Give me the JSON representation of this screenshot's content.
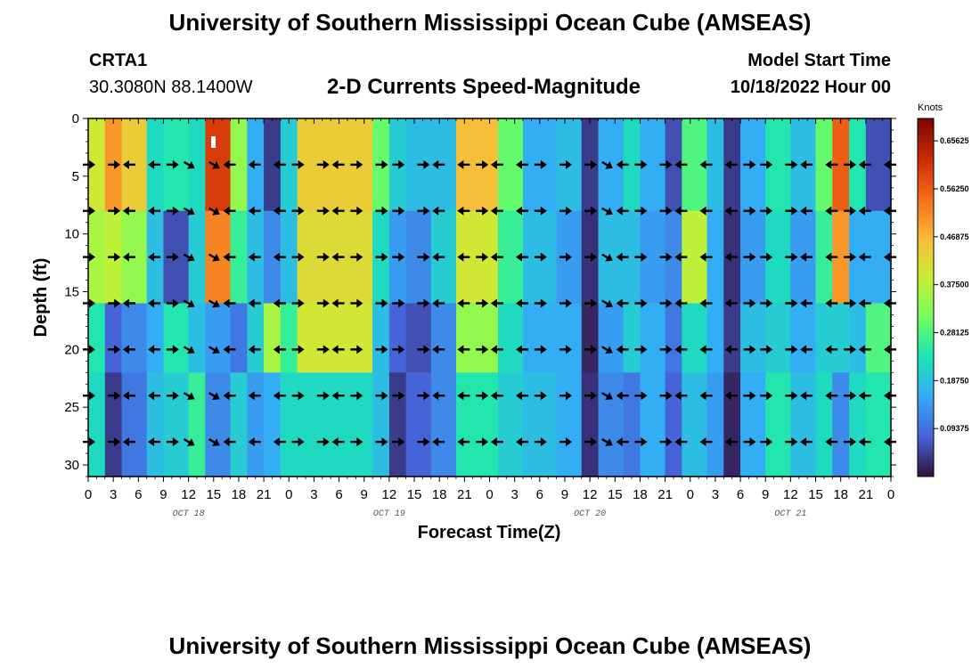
{
  "header": {
    "title": "University of Southern Mississippi Ocean Cube (AMSEAS)",
    "station": "CRTA1",
    "coords": "30.3080N  88.1400W",
    "subtitle": "2-D Currents Speed-Magnitude",
    "model_start_label": "Model Start Time",
    "model_start_value": "10/18/2022 Hour 00"
  },
  "footer": {
    "title": "University of Southern Mississippi Ocean Cube (AMSEAS)"
  },
  "chart_data": {
    "type": "heatmap",
    "title": "2-D Currents Speed-Magnitude",
    "xlabel": "Forecast Time(Z)",
    "ylabel": "Depth (ft)",
    "x_ticks": [
      "0",
      "3",
      "6",
      "9",
      "12",
      "15",
      "18",
      "21",
      "0",
      "3",
      "6",
      "9",
      "12",
      "15",
      "18",
      "21",
      "0",
      "3",
      "6",
      "9",
      "12",
      "15",
      "18",
      "21",
      "0",
      "3",
      "6",
      "9",
      "12",
      "15",
      "18",
      "21",
      "0"
    ],
    "x_range_hours": [
      0,
      96
    ],
    "date_labels": [
      {
        "label": "OCT 18",
        "hour": 12
      },
      {
        "label": "OCT 19",
        "hour": 36
      },
      {
        "label": "OCT 20",
        "hour": 60
      },
      {
        "label": "OCT 21",
        "hour": 84
      }
    ],
    "y_ticks": [
      "0",
      "5",
      "10",
      "15",
      "20",
      "25",
      "30"
    ],
    "ylim": [
      0,
      31
    ],
    "colorbar": {
      "units": "Knots",
      "labels": [
        "0.65625",
        "0.56250",
        "0.46875",
        "0.37500",
        "0.28125",
        "0.18750",
        "0.09375"
      ],
      "range": [
        0,
        0.7
      ],
      "colors": [
        "#30123b",
        "#4662d7",
        "#35abf8",
        "#1ae4b6",
        "#72fe5e",
        "#c8ef34",
        "#faba39",
        "#f66b19",
        "#ca2a04",
        "#7a0403"
      ]
    },
    "arrow_depths_ft": [
      4,
      8,
      12,
      16,
      20,
      24,
      28
    ],
    "arrow_hours": [
      0,
      3,
      5,
      8,
      10,
      12,
      15,
      17,
      20,
      23,
      25,
      28,
      30,
      32,
      35,
      37,
      40,
      42,
      45,
      47,
      49,
      52,
      54,
      57,
      60,
      62,
      64,
      66,
      69,
      71,
      74,
      77,
      79,
      81,
      84,
      86,
      89,
      91,
      93,
      96
    ],
    "speed_field": {
      "note": "Approximate speed (knots) per column and depth group",
      "depth_groups_ft": [
        [
          0,
          8
        ],
        [
          8,
          16
        ],
        [
          16,
          22
        ],
        [
          22,
          31
        ]
      ],
      "columns": [
        {
          "hour_start": 0,
          "hour_end": 2,
          "speeds": [
            0.4,
            0.36,
            0.24,
            0.22
          ]
        },
        {
          "hour_start": 2,
          "hour_end": 4,
          "speeds": [
            0.5,
            0.38,
            0.08,
            0.04
          ]
        },
        {
          "hour_start": 4,
          "hour_end": 7,
          "speeds": [
            0.44,
            0.34,
            0.12,
            0.1
          ]
        },
        {
          "hour_start": 7,
          "hour_end": 9,
          "speeds": [
            0.22,
            0.18,
            0.16,
            0.18
          ]
        },
        {
          "hour_start": 9,
          "hour_end": 12,
          "speeds": [
            0.24,
            0.06,
            0.24,
            0.2
          ]
        },
        {
          "hour_start": 12,
          "hour_end": 14,
          "speeds": [
            0.22,
            0.2,
            0.18,
            0.26
          ]
        },
        {
          "hour_start": 14,
          "hour_end": 17,
          "speeds": [
            0.6,
            0.52,
            0.14,
            0.12
          ]
        },
        {
          "hour_start": 17,
          "hour_end": 19,
          "speeds": [
            0.34,
            0.26,
            0.1,
            0.2
          ]
        },
        {
          "hour_start": 19,
          "hour_end": 21,
          "speeds": [
            0.16,
            0.18,
            0.2,
            0.14
          ]
        },
        {
          "hour_start": 21,
          "hour_end": 23,
          "speeds": [
            0.04,
            0.12,
            0.36,
            0.16
          ]
        },
        {
          "hour_start": 23,
          "hour_end": 25,
          "speeds": [
            0.2,
            0.18,
            0.26,
            0.22
          ]
        },
        {
          "hour_start": 25,
          "hour_end": 34,
          "speeds": [
            0.44,
            0.42,
            0.4,
            0.22
          ]
        },
        {
          "hour_start": 34,
          "hour_end": 36,
          "speeds": [
            0.3,
            0.22,
            0.18,
            0.18
          ]
        },
        {
          "hour_start": 36,
          "hour_end": 38,
          "speeds": [
            0.2,
            0.14,
            0.08,
            0.04
          ]
        },
        {
          "hour_start": 38,
          "hour_end": 41,
          "speeds": [
            0.18,
            0.12,
            0.06,
            0.08
          ]
        },
        {
          "hour_start": 41,
          "hour_end": 44,
          "speeds": [
            0.18,
            0.2,
            0.12,
            0.12
          ]
        },
        {
          "hour_start": 44,
          "hour_end": 49,
          "speeds": [
            0.46,
            0.4,
            0.34,
            0.24
          ]
        },
        {
          "hour_start": 49,
          "hour_end": 52,
          "speeds": [
            0.3,
            0.26,
            0.22,
            0.2
          ]
        },
        {
          "hour_start": 52,
          "hour_end": 56,
          "speeds": [
            0.16,
            0.18,
            0.16,
            0.18
          ]
        },
        {
          "hour_start": 56,
          "hour_end": 59,
          "speeds": [
            0.18,
            0.14,
            0.16,
            0.16
          ]
        },
        {
          "hour_start": 59,
          "hour_end": 61,
          "speeds": [
            0.04,
            0.03,
            0.02,
            0.03
          ]
        },
        {
          "hour_start": 61,
          "hour_end": 64,
          "speeds": [
            0.16,
            0.18,
            0.14,
            0.12
          ]
        },
        {
          "hour_start": 64,
          "hour_end": 66,
          "speeds": [
            0.22,
            0.18,
            0.2,
            0.1
          ]
        },
        {
          "hour_start": 66,
          "hour_end": 69,
          "speeds": [
            0.16,
            0.14,
            0.16,
            0.16
          ]
        },
        {
          "hour_start": 69,
          "hour_end": 71,
          "speeds": [
            0.06,
            0.12,
            0.1,
            0.08
          ]
        },
        {
          "hour_start": 71,
          "hour_end": 74,
          "speeds": [
            0.28,
            0.38,
            0.22,
            0.18
          ]
        },
        {
          "hour_start": 74,
          "hour_end": 76,
          "speeds": [
            0.18,
            0.16,
            0.16,
            0.14
          ]
        },
        {
          "hour_start": 76,
          "hour_end": 78,
          "speeds": [
            0.04,
            0.03,
            0.04,
            0.02
          ]
        },
        {
          "hour_start": 78,
          "hour_end": 81,
          "speeds": [
            0.16,
            0.14,
            0.18,
            0.16
          ]
        },
        {
          "hour_start": 81,
          "hour_end": 84,
          "speeds": [
            0.24,
            0.22,
            0.2,
            0.24
          ]
        },
        {
          "hour_start": 84,
          "hour_end": 87,
          "speeds": [
            0.18,
            0.14,
            0.16,
            0.18
          ]
        },
        {
          "hour_start": 87,
          "hour_end": 89,
          "speeds": [
            0.3,
            0.26,
            0.2,
            0.22
          ]
        },
        {
          "hour_start": 89,
          "hour_end": 91,
          "speeds": [
            0.56,
            0.5,
            0.2,
            0.12
          ]
        },
        {
          "hour_start": 91,
          "hour_end": 93,
          "speeds": [
            0.24,
            0.16,
            0.18,
            0.22
          ]
        },
        {
          "hour_start": 93,
          "hour_end": 96,
          "speeds": [
            0.06,
            0.16,
            0.28,
            0.24
          ]
        }
      ]
    }
  }
}
